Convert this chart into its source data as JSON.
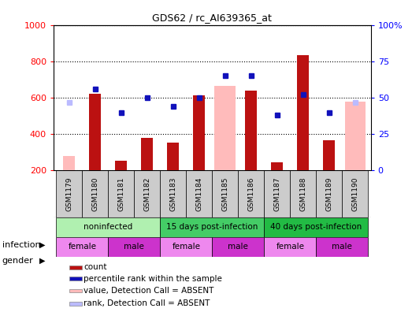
{
  "title": "GDS62 / rc_AI639365_at",
  "samples": [
    "GSM1179",
    "GSM1180",
    "GSM1181",
    "GSM1182",
    "GSM1183",
    "GSM1184",
    "GSM1185",
    "GSM1186",
    "GSM1187",
    "GSM1188",
    "GSM1189",
    "GSM1190"
  ],
  "count_values": [
    null,
    620,
    253,
    378,
    352,
    614,
    null,
    640,
    247,
    835,
    366,
    null
  ],
  "count_absent": [
    280,
    null,
    null,
    null,
    null,
    null,
    null,
    null,
    null,
    null,
    null,
    null
  ],
  "rank_values": [
    null,
    56,
    40,
    50,
    44,
    50,
    65,
    65,
    38,
    52,
    40,
    null
  ],
  "rank_absent": [
    47,
    null,
    null,
    null,
    null,
    null,
    null,
    null,
    null,
    null,
    null,
    47
  ],
  "value_absent": [
    null,
    null,
    null,
    null,
    null,
    null,
    665,
    null,
    null,
    null,
    null,
    580
  ],
  "infection_groups": [
    {
      "label": "noninfected",
      "start": 0,
      "end": 4,
      "color": "#b0f0b0"
    },
    {
      "label": "15 days post-infection",
      "start": 4,
      "end": 8,
      "color": "#44cc66"
    },
    {
      "label": "40 days post-infection",
      "start": 8,
      "end": 12,
      "color": "#22bb44"
    }
  ],
  "gender_groups": [
    {
      "label": "female",
      "start": 0,
      "end": 2,
      "color": "#ee88ee"
    },
    {
      "label": "male",
      "start": 2,
      "end": 4,
      "color": "#cc33cc"
    },
    {
      "label": "female",
      "start": 4,
      "end": 6,
      "color": "#ee88ee"
    },
    {
      "label": "male",
      "start": 6,
      "end": 8,
      "color": "#cc33cc"
    },
    {
      "label": "female",
      "start": 8,
      "end": 10,
      "color": "#ee88ee"
    },
    {
      "label": "male",
      "start": 10,
      "end": 12,
      "color": "#cc33cc"
    }
  ],
  "ylim_left": [
    200,
    1000
  ],
  "ylim_right": [
    0,
    100
  ],
  "yticks_left": [
    200,
    400,
    600,
    800,
    1000
  ],
  "yticks_right": [
    0,
    25,
    50,
    75,
    100
  ],
  "bar_width": 0.45,
  "count_color": "#bb1111",
  "rank_color": "#1111bb",
  "absent_value_color": "#ffbbbb",
  "absent_rank_color": "#bbbbff",
  "label_box_color": "#cccccc",
  "legend_items": [
    {
      "label": "count",
      "color": "#bb1111"
    },
    {
      "label": "percentile rank within the sample",
      "color": "#1111bb"
    },
    {
      "label": "value, Detection Call = ABSENT",
      "color": "#ffbbbb"
    },
    {
      "label": "rank, Detection Call = ABSENT",
      "color": "#bbbbff"
    }
  ]
}
